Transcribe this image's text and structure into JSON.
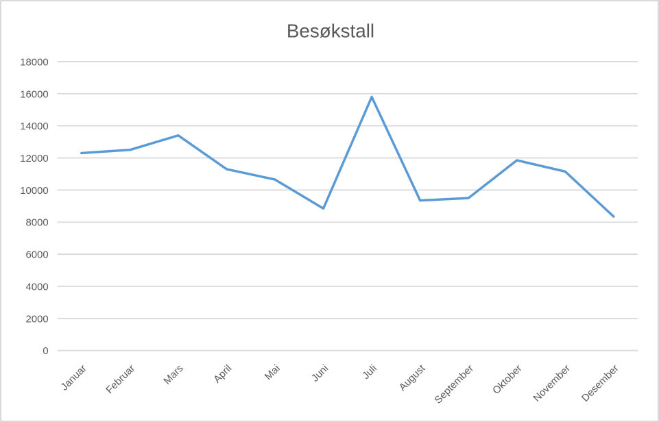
{
  "chart_data": {
    "type": "line",
    "title": "Besøkstall",
    "categories": [
      "Januar",
      "Februar",
      "Mars",
      "April",
      "Mai",
      "Juni",
      "Juli",
      "August",
      "September",
      "Oktober",
      "November",
      "Desember"
    ],
    "series": [
      {
        "name": "Besøkstall",
        "values": [
          12300,
          12500,
          13400,
          11300,
          10650,
          8850,
          15800,
          9350,
          9500,
          11850,
          11150,
          8350
        ]
      }
    ],
    "xlabel": "",
    "ylabel": "",
    "ylim": [
      0,
      18000
    ],
    "yticks": [
      0,
      2000,
      4000,
      6000,
      8000,
      10000,
      12000,
      14000,
      16000,
      18000
    ],
    "grid": "horizontal",
    "legend_position": "none",
    "x_label_rotation_deg": 45,
    "colors": {
      "line": "#5B9BD5",
      "gridline": "#D9D9D9",
      "text": "#595959",
      "border": "#D9D9D9",
      "background": "#FFFFFF"
    }
  }
}
